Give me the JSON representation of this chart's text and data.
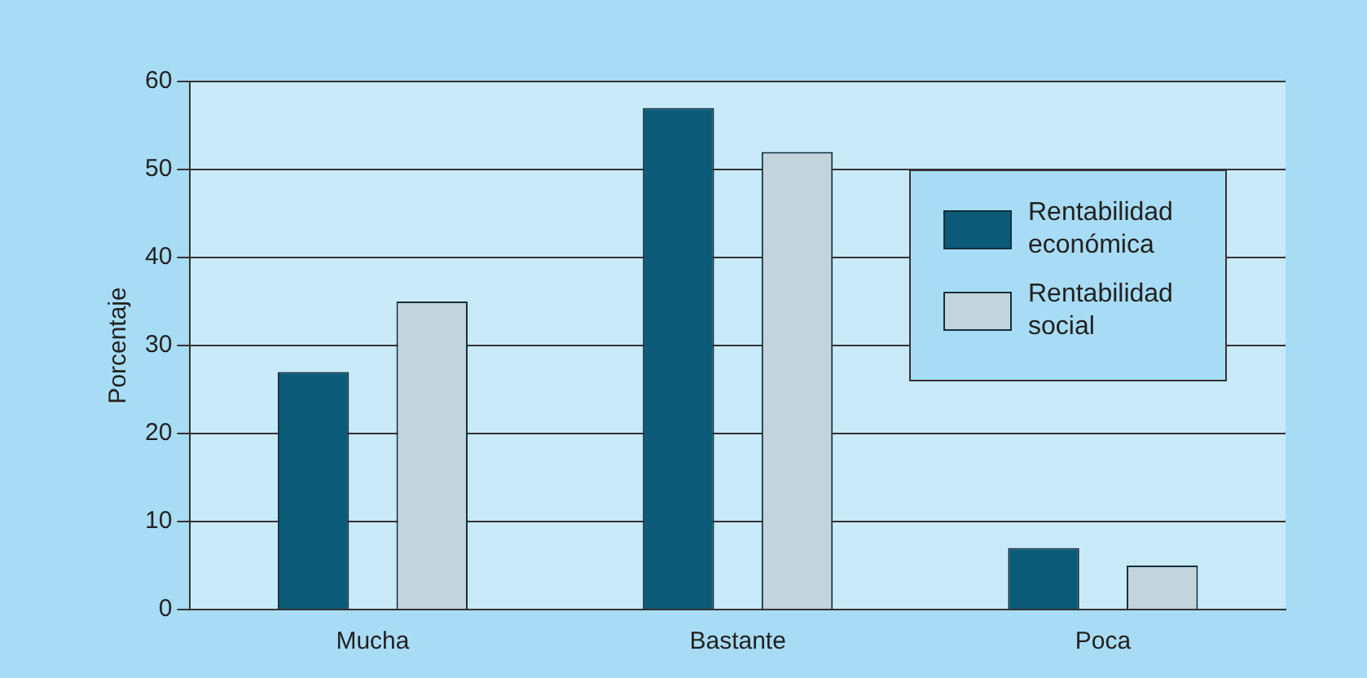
{
  "chart_data": {
    "type": "bar",
    "ylabel": "Porcentaje",
    "categories": [
      "Mucha",
      "Bastante",
      "Poca"
    ],
    "series": [
      {
        "name": "Rentabilidad económica",
        "color": "#0a5a78",
        "values": [
          27,
          57,
          7
        ]
      },
      {
        "name": "Rentabilidad social",
        "color": "#c4d4dc",
        "values": [
          35,
          52,
          5
        ]
      }
    ],
    "ylim": [
      0,
      60
    ],
    "yticks": [
      0,
      10,
      20,
      30,
      40,
      50,
      60
    ],
    "grid": "y",
    "legend": "top right"
  }
}
